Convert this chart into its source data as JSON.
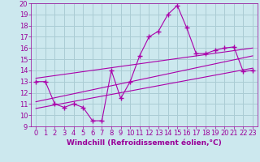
{
  "xlabel": "Windchill (Refroidissement éolien,°C)",
  "bg_color": "#cce8ee",
  "line_color": "#aa00aa",
  "xlim": [
    -0.5,
    23.5
  ],
  "ylim": [
    9,
    20
  ],
  "xticks": [
    0,
    1,
    2,
    3,
    4,
    5,
    6,
    7,
    8,
    9,
    10,
    11,
    12,
    13,
    14,
    15,
    16,
    17,
    18,
    19,
    20,
    21,
    22,
    23
  ],
  "yticks": [
    9,
    10,
    11,
    12,
    13,
    14,
    15,
    16,
    17,
    18,
    19,
    20
  ],
  "main_series_x": [
    0,
    1,
    2,
    3,
    4,
    5,
    6,
    7,
    8,
    9,
    10,
    11,
    12,
    13,
    14,
    15,
    16,
    17,
    18,
    19,
    20,
    21,
    22,
    23
  ],
  "main_series_y": [
    13.0,
    13.0,
    11.0,
    10.7,
    11.0,
    10.7,
    9.5,
    9.5,
    14.0,
    11.5,
    13.0,
    15.3,
    17.0,
    17.5,
    19.0,
    19.8,
    17.8,
    15.5,
    15.5,
    15.8,
    16.0,
    16.1,
    13.9,
    14.0
  ],
  "reg_line1_x": [
    0,
    23
  ],
  "reg_line1_y": [
    13.3,
    16.0
  ],
  "reg_line2_x": [
    0,
    23
  ],
  "reg_line2_y": [
    11.2,
    15.3
  ],
  "reg_line3_x": [
    0,
    23
  ],
  "reg_line3_y": [
    10.6,
    14.2
  ],
  "grid_color": "#aaccd4",
  "font_color": "#990099",
  "font_size": 6,
  "xlabel_fontsize": 6.5
}
